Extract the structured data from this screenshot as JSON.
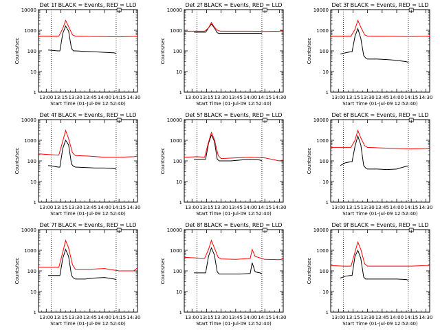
{
  "colors": {
    "events": "#000000",
    "lld": "#ff0000",
    "axis": "#000000",
    "background": "#ffffff"
  },
  "shared": {
    "xlabel": "Start Time (01-Jul-09 12:52:40)",
    "ylabel": "Counts/sec",
    "x_ticks": [
      "13:00",
      "13:15",
      "13:30",
      "13:45",
      "14:00",
      "14:15",
      "14:30"
    ],
    "y_ticks": [
      "1",
      "10",
      "100",
      "1000",
      "10000"
    ]
  },
  "chart_data": [
    {
      "type": "line",
      "title": "Det 1f BLACK = Events, RED = LLD",
      "xlabel": "Start Time (01-Jul-09 12:52:40)",
      "ylabel": "Counts/sec",
      "y_scale": "log",
      "ylim": [
        1,
        10000
      ],
      "xlim": [
        "12:52",
        "14:34"
      ],
      "grid": false,
      "legend": "none",
      "series": [
        {
          "name": "Events",
          "color": "#000000",
          "x": [
            "13:02",
            "13:07",
            "13:12",
            "13:14",
            "13:17",
            "13:20",
            "13:23",
            "13:26",
            "13:28",
            "13:30",
            "13:40",
            "13:50",
            "14:00",
            "14:10",
            "14:12"
          ],
          "values": [
            110,
            105,
            100,
            100,
            700,
            1600,
            900,
            130,
            100,
            100,
            95,
            90,
            85,
            80,
            75
          ]
        },
        {
          "name": "LLD",
          "color": "#ff0000",
          "x": [
            "12:52",
            "13:05",
            "13:13",
            "13:17",
            "13:20",
            "13:23",
            "13:27",
            "13:30",
            "13:45",
            "14:00",
            "14:15",
            "14:30",
            "14:34"
          ],
          "values": [
            520,
            520,
            520,
            1200,
            3000,
            1500,
            600,
            520,
            500,
            490,
            480,
            500,
            520
          ]
        }
      ]
    },
    {
      "type": "line",
      "title": "Det 2f BLACK = Events, RED = LLD",
      "xlabel": "Start Time (01-Jul-09 12:52:40)",
      "ylabel": "Counts/sec",
      "y_scale": "log",
      "ylim": [
        1,
        10000
      ],
      "xlim": [
        "12:52",
        "14:34"
      ],
      "grid": false,
      "legend": "none",
      "series": [
        {
          "name": "Events",
          "color": "#000000",
          "x": [
            "13:02",
            "13:07",
            "13:12",
            "13:14",
            "13:17",
            "13:20",
            "13:23",
            "13:26",
            "13:28",
            "13:30",
            "13:40",
            "13:50",
            "14:00",
            "14:10",
            "14:12"
          ],
          "values": [
            800,
            800,
            800,
            800,
            1300,
            2000,
            1300,
            750,
            700,
            700,
            700,
            700,
            700,
            700,
            700
          ]
        },
        {
          "name": "LLD",
          "color": "#ff0000",
          "x": [
            "12:52",
            "13:05",
            "13:13",
            "13:17",
            "13:20",
            "13:23",
            "13:27",
            "13:30",
            "13:45",
            "14:00",
            "14:15",
            "14:30",
            "14:34"
          ],
          "values": [
            900,
            900,
            900,
            1300,
            2400,
            1400,
            950,
            900,
            900,
            900,
            880,
            900,
            950
          ]
        }
      ]
    },
    {
      "type": "line",
      "title": "Det 3f BLACK = Events, RED = LLD",
      "xlabel": "Start Time (01-Jul-09 12:52:40)",
      "ylabel": "Counts/sec",
      "y_scale": "log",
      "ylim": [
        1,
        10000
      ],
      "xlim": [
        "12:52",
        "14:34"
      ],
      "grid": false,
      "legend": "none",
      "series": [
        {
          "name": "Events",
          "color": "#000000",
          "x": [
            "13:02",
            "13:07",
            "13:12",
            "13:14",
            "13:17",
            "13:20",
            "13:23",
            "13:26",
            "13:28",
            "13:30",
            "13:40",
            "13:50",
            "14:00",
            "14:10",
            "14:12"
          ],
          "values": [
            70,
            80,
            90,
            90,
            500,
            1200,
            400,
            60,
            45,
            40,
            40,
            38,
            35,
            30,
            28
          ]
        },
        {
          "name": "LLD",
          "color": "#ff0000",
          "x": [
            "12:52",
            "13:05",
            "13:13",
            "13:17",
            "13:20",
            "13:23",
            "13:27",
            "13:30",
            "13:45",
            "14:00",
            "14:15",
            "14:30",
            "14:34"
          ],
          "values": [
            520,
            520,
            520,
            1100,
            3000,
            1400,
            600,
            520,
            510,
            500,
            490,
            510,
            520
          ]
        }
      ]
    },
    {
      "type": "line",
      "title": "Det 4f BLACK = Events, RED = LLD",
      "xlabel": "Start Time (01-Jul-09 12:52:40)",
      "ylabel": "Counts/sec",
      "y_scale": "log",
      "ylim": [
        1,
        10000
      ],
      "xlim": [
        "12:52",
        "14:34"
      ],
      "grid": false,
      "legend": "none",
      "series": [
        {
          "name": "Events",
          "color": "#000000",
          "x": [
            "13:02",
            "13:07",
            "13:12",
            "13:14",
            "13:17",
            "13:20",
            "13:23",
            "13:26",
            "13:28",
            "13:30",
            "13:40",
            "13:50",
            "14:00",
            "14:10",
            "14:12"
          ],
          "values": [
            60,
            55,
            50,
            50,
            400,
            1000,
            600,
            70,
            55,
            50,
            48,
            45,
            45,
            42,
            40
          ]
        },
        {
          "name": "LLD",
          "color": "#ff0000",
          "x": [
            "12:52",
            "13:05",
            "13:13",
            "13:17",
            "13:20",
            "13:23",
            "13:27",
            "13:30",
            "13:45",
            "14:00",
            "14:15",
            "14:30",
            "14:34"
          ],
          "values": [
            220,
            200,
            190,
            900,
            3000,
            1200,
            250,
            180,
            170,
            150,
            150,
            160,
            170
          ]
        }
      ]
    },
    {
      "type": "line",
      "title": "Det 5f BLACK = Events, RED = LLD",
      "xlabel": "Start Time (01-Jul-09 12:52:40)",
      "ylabel": "Counts/sec",
      "y_scale": "log",
      "ylim": [
        1,
        10000
      ],
      "xlim": [
        "12:52",
        "14:34"
      ],
      "grid": false,
      "legend": "none",
      "series": [
        {
          "name": "Events",
          "color": "#000000",
          "x": [
            "13:02",
            "13:07",
            "13:12",
            "13:14",
            "13:17",
            "13:20",
            "13:23",
            "13:26",
            "13:28",
            "13:30",
            "13:40",
            "13:50",
            "14:00",
            "14:10",
            "14:12"
          ],
          "values": [
            120,
            120,
            120,
            120,
            700,
            1800,
            900,
            120,
            100,
            100,
            100,
            110,
            120,
            110,
            100
          ]
        },
        {
          "name": "LLD",
          "color": "#ff0000",
          "x": [
            "12:52",
            "13:05",
            "13:13",
            "13:17",
            "13:20",
            "13:23",
            "13:27",
            "13:30",
            "13:45",
            "14:00",
            "14:15",
            "14:30",
            "14:34"
          ],
          "values": [
            150,
            160,
            150,
            800,
            2400,
            1100,
            180,
            130,
            140,
            150,
            140,
            100,
            110
          ]
        }
      ]
    },
    {
      "type": "line",
      "title": "Det 6f BLACK = Events, RED = LLD",
      "xlabel": "Start Time (01-Jul-09 12:52:40)",
      "ylabel": "Counts/sec",
      "y_scale": "log",
      "ylim": [
        1,
        10000
      ],
      "xlim": [
        "12:52",
        "14:34"
      ],
      "grid": false,
      "legend": "none",
      "series": [
        {
          "name": "Events",
          "color": "#000000",
          "x": [
            "13:02",
            "13:07",
            "13:12",
            "13:14",
            "13:17",
            "13:20",
            "13:23",
            "13:26",
            "13:28",
            "13:30",
            "13:40",
            "13:50",
            "14:00",
            "14:10",
            "14:12"
          ],
          "values": [
            60,
            80,
            90,
            90,
            500,
            1600,
            600,
            60,
            45,
            40,
            40,
            38,
            40,
            55,
            55
          ]
        },
        {
          "name": "LLD",
          "color": "#ff0000",
          "x": [
            "12:52",
            "13:05",
            "13:13",
            "13:17",
            "13:20",
            "13:23",
            "13:27",
            "13:30",
            "13:45",
            "14:00",
            "14:15",
            "14:30",
            "14:34"
          ],
          "values": [
            450,
            450,
            450,
            1000,
            3000,
            1300,
            550,
            450,
            420,
            400,
            380,
            400,
            420
          ]
        }
      ]
    },
    {
      "type": "line",
      "title": "Det 7f BLACK = Events, RED = LLD",
      "xlabel": "Start Time (01-Jul-09 12:52:40)",
      "ylabel": "Counts/sec",
      "y_scale": "log",
      "ylim": [
        1,
        10000
      ],
      "xlim": [
        "12:52",
        "14:34"
      ],
      "grid": false,
      "legend": "none",
      "series": [
        {
          "name": "Events",
          "color": "#000000",
          "x": [
            "13:02",
            "13:07",
            "13:12",
            "13:14",
            "13:17",
            "13:20",
            "13:23",
            "13:26",
            "13:28",
            "13:30",
            "13:40",
            "13:50",
            "14:00",
            "14:10",
            "14:12"
          ],
          "values": [
            60,
            60,
            60,
            60,
            400,
            1100,
            500,
            60,
            45,
            40,
            40,
            45,
            48,
            40,
            38
          ]
        },
        {
          "name": "LLD",
          "color": "#ff0000",
          "x": [
            "12:52",
            "13:05",
            "13:13",
            "13:17",
            "13:20",
            "13:23",
            "13:27",
            "13:30",
            "13:45",
            "14:00",
            "14:15",
            "14:30",
            "14:34"
          ],
          "values": [
            150,
            150,
            150,
            800,
            3000,
            1300,
            200,
            120,
            120,
            130,
            100,
            100,
            140
          ]
        }
      ]
    },
    {
      "type": "line",
      "title": "Det 8f BLACK = Events, RED = LLD",
      "xlabel": "Start Time (01-Jul-09 12:52:40)",
      "ylabel": "Counts/sec",
      "y_scale": "log",
      "ylim": [
        1,
        10000
      ],
      "xlim": [
        "12:52",
        "14:34"
      ],
      "grid": false,
      "legend": "none",
      "series": [
        {
          "name": "Events",
          "color": "#000000",
          "x": [
            "13:02",
            "13:07",
            "13:12",
            "13:14",
            "13:17",
            "13:20",
            "13:23",
            "13:26",
            "13:28",
            "13:30",
            "13:40",
            "13:50",
            "14:00",
            "14:02",
            "14:05",
            "14:10",
            "14:12"
          ],
          "values": [
            80,
            80,
            80,
            80,
            500,
            1300,
            600,
            90,
            70,
            70,
            70,
            70,
            75,
            250,
            90,
            80,
            70
          ]
        },
        {
          "name": "LLD",
          "color": "#ff0000",
          "x": [
            "12:52",
            "13:05",
            "13:13",
            "13:17",
            "13:20",
            "13:23",
            "13:27",
            "13:30",
            "13:45",
            "14:00",
            "14:02",
            "14:05",
            "14:15",
            "14:30",
            "14:34"
          ],
          "values": [
            450,
            420,
            400,
            1100,
            3000,
            1300,
            450,
            380,
            360,
            400,
            1100,
            500,
            360,
            350,
            380
          ]
        }
      ]
    },
    {
      "type": "line",
      "title": "Det 9f BLACK = Events, RED = LLD",
      "xlabel": "Start Time (01-Jul-09 12:52:40)",
      "ylabel": "Counts/sec",
      "y_scale": "log",
      "ylim": [
        1,
        10000
      ],
      "xlim": [
        "12:52",
        "14:34"
      ],
      "grid": false,
      "legend": "none",
      "series": [
        {
          "name": "Events",
          "color": "#000000",
          "x": [
            "13:02",
            "13:07",
            "13:12",
            "13:14",
            "13:17",
            "13:20",
            "13:23",
            "13:26",
            "13:28",
            "13:30",
            "13:40",
            "13:50",
            "14:00",
            "14:10",
            "14:12"
          ],
          "values": [
            45,
            55,
            60,
            60,
            500,
            1000,
            400,
            50,
            40,
            40,
            40,
            40,
            40,
            38,
            35
          ]
        },
        {
          "name": "LLD",
          "color": "#ff0000",
          "x": [
            "12:52",
            "13:05",
            "13:13",
            "13:17",
            "13:20",
            "13:23",
            "13:27",
            "13:30",
            "13:45",
            "14:00",
            "14:15",
            "14:30",
            "14:34"
          ],
          "values": [
            180,
            170,
            170,
            800,
            2500,
            1100,
            220,
            170,
            170,
            170,
            170,
            180,
            180
          ]
        }
      ]
    }
  ]
}
